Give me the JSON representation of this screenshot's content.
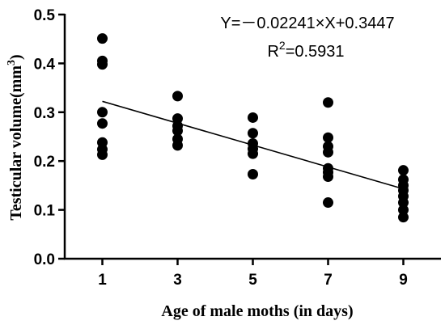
{
  "chart_data": {
    "type": "scatter",
    "xlabel": "Age of male moths (in days)",
    "ylabel": "Testicular volume(mm",
    "ylabel_sup": "3",
    "ylabel_end": ")",
    "xlim": [
      0,
      10
    ],
    "ylim": [
      0,
      0.5
    ],
    "x_ticks": [
      1,
      3,
      5,
      7,
      9
    ],
    "x_tick_labels": [
      "1",
      "3",
      "5",
      "7",
      "9"
    ],
    "y_ticks": [
      0,
      0.1,
      0.2,
      0.3,
      0.4,
      0.5
    ],
    "y_tick_labels": [
      "0.0",
      "0.1",
      "0.2",
      "0.3",
      "0.4",
      "0.5"
    ],
    "grid": false,
    "points": [
      {
        "x": 1,
        "y": 0.451
      },
      {
        "x": 1,
        "y": 0.405
      },
      {
        "x": 1,
        "y": 0.398
      },
      {
        "x": 1,
        "y": 0.3
      },
      {
        "x": 1,
        "y": 0.277
      },
      {
        "x": 1,
        "y": 0.238
      },
      {
        "x": 1,
        "y": 0.224
      },
      {
        "x": 1,
        "y": 0.213
      },
      {
        "x": 3,
        "y": 0.333
      },
      {
        "x": 3,
        "y": 0.287
      },
      {
        "x": 3,
        "y": 0.272
      },
      {
        "x": 3,
        "y": 0.262
      },
      {
        "x": 3,
        "y": 0.245
      },
      {
        "x": 3,
        "y": 0.232
      },
      {
        "x": 5,
        "y": 0.289
      },
      {
        "x": 5,
        "y": 0.257
      },
      {
        "x": 5,
        "y": 0.236
      },
      {
        "x": 5,
        "y": 0.225
      },
      {
        "x": 5,
        "y": 0.215
      },
      {
        "x": 5,
        "y": 0.173
      },
      {
        "x": 7,
        "y": 0.32
      },
      {
        "x": 7,
        "y": 0.248
      },
      {
        "x": 7,
        "y": 0.23
      },
      {
        "x": 7,
        "y": 0.218
      },
      {
        "x": 7,
        "y": 0.185
      },
      {
        "x": 7,
        "y": 0.177
      },
      {
        "x": 7,
        "y": 0.168
      },
      {
        "x": 7,
        "y": 0.115
      },
      {
        "x": 9,
        "y": 0.181
      },
      {
        "x": 9,
        "y": 0.162
      },
      {
        "x": 9,
        "y": 0.15
      },
      {
        "x": 9,
        "y": 0.14
      },
      {
        "x": 9,
        "y": 0.128
      },
      {
        "x": 9,
        "y": 0.115
      },
      {
        "x": 9,
        "y": 0.1
      },
      {
        "x": 9,
        "y": 0.085
      }
    ],
    "regression": {
      "slope": -0.02241,
      "intercept": 0.3447,
      "x_range": [
        1,
        9
      ]
    },
    "annotations": {
      "equation": "Y=－0.02241×X+0.3447",
      "r2_prefix": "R",
      "r2_sup": "2",
      "r2_value": "=0.5931"
    },
    "colors": {
      "points": "#000000",
      "line": "#000000",
      "axes": "#000000"
    }
  }
}
